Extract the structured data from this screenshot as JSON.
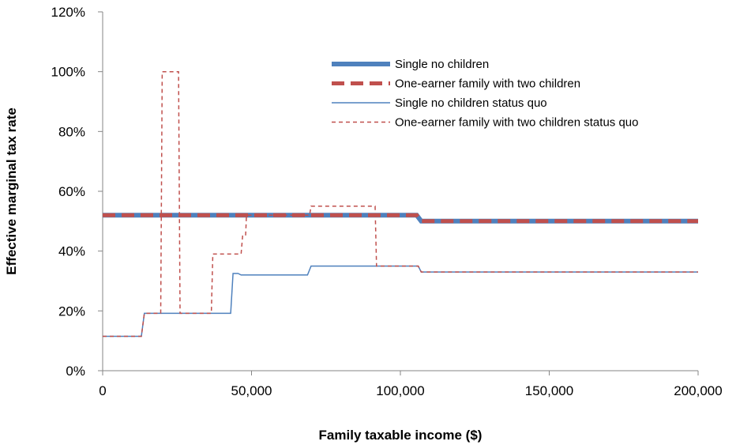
{
  "chart_data": {
    "type": "line",
    "title": "",
    "xlabel": "Family taxable income ($)",
    "ylabel": "Effective marginal tax rate",
    "xlim": [
      0,
      200000
    ],
    "ylim": [
      0,
      1.2
    ],
    "x_ticks": [
      0,
      50000,
      100000,
      150000,
      200000
    ],
    "x_tick_labels": [
      "0",
      "50,000",
      "100,000",
      "150,000",
      "200,000"
    ],
    "y_ticks": [
      0,
      0.2,
      0.4,
      0.6,
      0.8,
      1.0,
      1.2
    ],
    "y_tick_labels": [
      "0%",
      "20%",
      "40%",
      "60%",
      "80%",
      "100%",
      "120%"
    ],
    "grid": false,
    "legend_position": "top-right",
    "series": [
      {
        "name": "Single no children",
        "color": "#4f81bd",
        "style": "solid-thick",
        "x": [
          0,
          105500,
          107000,
          200000
        ],
        "y": [
          0.52,
          0.52,
          0.5,
          0.5
        ]
      },
      {
        "name": "One-earner family with two children",
        "color": "#c0504d",
        "style": "dashed-thick",
        "x": [
          0,
          105500,
          107000,
          200000
        ],
        "y": [
          0.52,
          0.52,
          0.5,
          0.5
        ]
      },
      {
        "name": "Single no children status quo",
        "color": "#4f81bd",
        "style": "solid-thin",
        "x": [
          0,
          13000,
          14000,
          43000,
          43800,
          45500,
          46500,
          68800,
          70000,
          106000,
          107000,
          200000
        ],
        "y": [
          0.115,
          0.115,
          0.192,
          0.192,
          0.325,
          0.325,
          0.32,
          0.32,
          0.35,
          0.35,
          0.33,
          0.33
        ]
      },
      {
        "name": "One-earner family with two children status quo",
        "color": "#c0504d",
        "style": "dashed-thin",
        "x": [
          0,
          13000,
          14000,
          19500,
          20000,
          25500,
          26000,
          36500,
          37000,
          46500,
          47000,
          48000,
          48300,
          69500,
          70000,
          91500,
          92000,
          106000,
          107000,
          200000
        ],
        "y": [
          0.115,
          0.115,
          0.192,
          0.192,
          1.0,
          1.0,
          0.192,
          0.192,
          0.39,
          0.39,
          0.45,
          0.45,
          0.52,
          0.52,
          0.55,
          0.55,
          0.35,
          0.35,
          0.33,
          0.33
        ]
      }
    ]
  }
}
